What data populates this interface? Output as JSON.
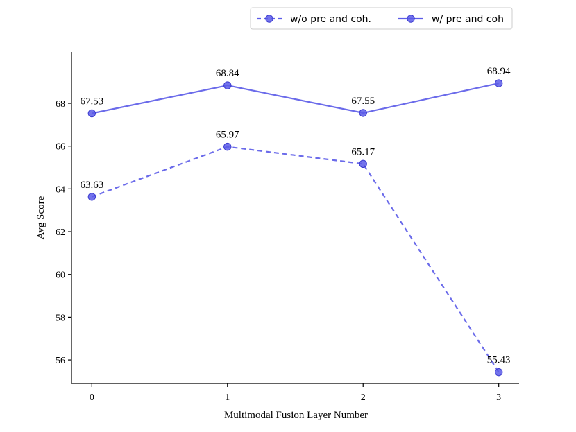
{
  "chart_data": {
    "type": "line",
    "xlabel": "Multimodal Fusion Layer Number",
    "ylabel": "Avg Score",
    "x": [
      0,
      1,
      2,
      3
    ],
    "xlim": [
      -0.15,
      3.15
    ],
    "ylim": [
      54.9,
      70.4
    ],
    "xticks": [
      0,
      1,
      2,
      3
    ],
    "yticks": [
      56,
      58,
      60,
      62,
      64,
      66,
      68
    ],
    "grid": false,
    "legend_position": "top-right",
    "series": [
      {
        "name": "w/o pre and coh.",
        "style": "dashed",
        "color": "#5b5be8",
        "values": [
          63.63,
          65.97,
          65.17,
          55.43
        ],
        "labels": [
          "63.63",
          "65.97",
          "65.17",
          "55.43"
        ]
      },
      {
        "name": "w/ pre and coh",
        "style": "solid",
        "color": "#5b5be8",
        "values": [
          67.53,
          68.84,
          67.55,
          68.94
        ],
        "labels": [
          "67.53",
          "68.84",
          "67.55",
          "68.94"
        ]
      }
    ]
  }
}
